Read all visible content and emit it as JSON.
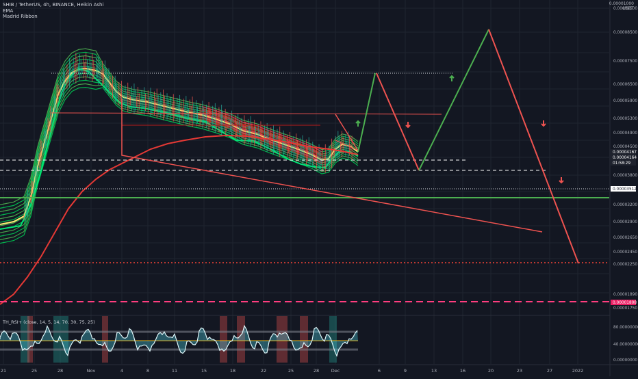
{
  "header": {
    "symbol_line": "SHIB / TetherUS, 4h, BINANCE, Heikin Ashi",
    "indicators": [
      "EMA",
      "Madrid Ribbon"
    ],
    "currency_top": "0.00001000",
    "currency": "USDT"
  },
  "rsi_panel": {
    "legend": "TH_RSI+ (close, 14, 5, 14, 70, 30, 75, 25)",
    "ticks": [
      "80.00000000",
      "40.00000000",
      "0.00000000"
    ]
  },
  "price_axis": {
    "ticks": [
      "0.00009500",
      "0.00008500",
      "0.00007500",
      "0.00006500",
      "0.00005900",
      "0.00005300",
      "0.00004900",
      "0.00004500",
      "0.00003800",
      "0.00003200",
      "0.00002900",
      "0.00002650",
      "0.00002450",
      "0.00002250",
      "0.00001890",
      "0.00001750"
    ],
    "badges": [
      {
        "label": "0.00004167",
        "bg": "#1e222d",
        "fg": "#ffffff"
      },
      {
        "label": "0.00004164",
        "bg": "#1e222d",
        "fg": "#ffffff"
      },
      {
        "label": "01:58:29",
        "bg": "#1e222d",
        "fg": "#ffffff"
      },
      {
        "label": "0.00003512",
        "bg": "#ffffff",
        "fg": "#131722"
      },
      {
        "label": "0.00001808",
        "bg": "#e91e63",
        "fg": "#ffffff"
      }
    ]
  },
  "time_axis": {
    "labels": [
      "21",
      "25",
      "28",
      "Nov",
      "4",
      "8",
      "11",
      "15",
      "18",
      "22",
      "25",
      "28",
      "Dec",
      "6",
      "9",
      "13",
      "16",
      "20",
      "23",
      "27",
      "2022"
    ]
  },
  "chart_data": {
    "type": "line",
    "title": "SHIB / TetherUS, 4h, BINANCE, Heikin Ashi",
    "xlabel": "",
    "ylabel": "",
    "price_levels": {
      "current_price": 4.164e-05,
      "ema_value": 4.167e-05,
      "dashed_support": 3.8e-05,
      "dotted_level": 3.512e-05,
      "green_support": 3.31e-05,
      "dotted_red_target": 2.25e-05,
      "dashed_pink_level": 1.808e-05
    },
    "projection_path_green_red": [
      {
        "date": "Nov 30",
        "price": 4.2e-05
      },
      {
        "date": "Dec 2",
        "price": 6.8e-05
      },
      {
        "date": "Dec 9",
        "price": 3.85e-05
      },
      {
        "date": "Dec 19",
        "price": 9.1e-05
      },
      {
        "date": "Dec 30",
        "price": 2.25e-05
      }
    ],
    "arrows": [
      {
        "direction": "up",
        "color": "green"
      },
      {
        "direction": "down",
        "color": "red"
      },
      {
        "direction": "up",
        "color": "green"
      },
      {
        "direction": "down",
        "color": "red"
      },
      {
        "direction": "down",
        "color": "red"
      }
    ],
    "series": [
      {
        "name": "EMA",
        "color": "#ff2e2e"
      },
      {
        "name": "Madrid Ribbon",
        "color": "#00e676"
      }
    ],
    "colors": {
      "bull": "#26a69a",
      "bear": "#ef5350",
      "ribbon_green": "#00e676",
      "ribbon_red": "#ff1744",
      "ema": "#e53935",
      "yellow": "#fff176",
      "pink": "#ff3d7f",
      "background": "#131722"
    }
  }
}
